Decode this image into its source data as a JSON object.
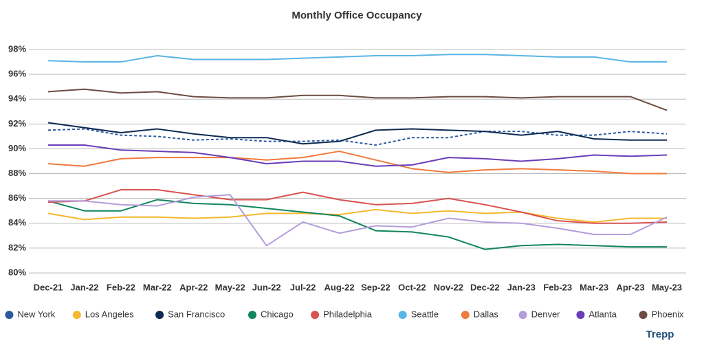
{
  "chart_data": {
    "type": "line",
    "title": "Monthly Office Occupancy",
    "brand": "Trepp",
    "categories": [
      "Dec-21",
      "Jan-22",
      "Feb-22",
      "Mar-22",
      "Apr-22",
      "May-22",
      "Jun-22",
      "Jul-22",
      "Aug-22",
      "Sep-22",
      "Oct-22",
      "Nov-22",
      "Dec-22",
      "Jan-23",
      "Feb-23",
      "Mar-23",
      "Apr-23",
      "May-23"
    ],
    "ylim": [
      80,
      98
    ],
    "yticks": [
      {
        "value": 80,
        "label": "80%"
      },
      {
        "value": 82,
        "label": "82%"
      },
      {
        "value": 84,
        "label": "84%"
      },
      {
        "value": 86,
        "label": "86%"
      },
      {
        "value": 88,
        "label": "88%"
      },
      {
        "value": 90,
        "label": "90%"
      },
      {
        "value": 92,
        "label": "92%"
      },
      {
        "value": 94,
        "label": "94%"
      },
      {
        "value": 96,
        "label": "96%"
      },
      {
        "value": 98,
        "label": "98%"
      }
    ],
    "grid": true,
    "legend": "bottom",
    "series": [
      {
        "name": "New York",
        "color": "#2a5aa0",
        "dash": "dashed",
        "values": [
          91.5,
          91.6,
          91.1,
          91.0,
          90.7,
          90.8,
          90.6,
          90.6,
          90.7,
          90.3,
          90.9,
          90.9,
          91.4,
          91.4,
          91.1,
          91.1,
          91.4,
          91.2
        ]
      },
      {
        "name": "Los Angeles",
        "color": "#f5b82e",
        "values": [
          84.8,
          84.3,
          84.5,
          84.5,
          84.4,
          84.5,
          84.8,
          84.8,
          84.7,
          85.1,
          84.8,
          85.0,
          84.8,
          84.9,
          84.4,
          84.1,
          84.4,
          84.4
        ]
      },
      {
        "name": "San Francisco",
        "color": "#0d2b52",
        "values": [
          92.1,
          91.7,
          91.3,
          91.6,
          91.2,
          90.9,
          90.9,
          90.4,
          90.6,
          91.5,
          91.6,
          91.5,
          91.4,
          91.1,
          91.4,
          90.8,
          90.7,
          90.7
        ]
      },
      {
        "name": "Chicago",
        "color": "#11855f",
        "values": [
          85.8,
          85.0,
          85.0,
          85.9,
          85.6,
          85.5,
          85.2,
          84.9,
          84.6,
          83.4,
          83.3,
          82.9,
          81.9,
          82.2,
          82.3,
          82.2,
          82.1,
          82.1
        ]
      },
      {
        "name": "Philadelphia",
        "color": "#d9534f",
        "values": [
          85.7,
          85.8,
          86.7,
          86.7,
          86.3,
          85.9,
          85.9,
          86.5,
          85.9,
          85.5,
          85.6,
          86.0,
          85.5,
          84.9,
          84.2,
          84.0,
          84.0,
          84.1
        ]
      },
      {
        "name": "Seattle",
        "color": "#5ab4e5",
        "values": [
          97.1,
          97.0,
          97.0,
          97.5,
          97.2,
          97.2,
          97.2,
          97.3,
          97.4,
          97.5,
          97.5,
          97.6,
          97.6,
          97.5,
          97.4,
          97.4,
          97.0,
          97.0
        ]
      },
      {
        "name": "Dallas",
        "color": "#f07a3b",
        "values": [
          88.8,
          88.6,
          89.2,
          89.3,
          89.3,
          89.3,
          89.1,
          89.3,
          89.8,
          89.1,
          88.4,
          88.1,
          88.3,
          88.4,
          88.3,
          88.2,
          88.0,
          88.0
        ]
      },
      {
        "name": "Denver",
        "color": "#b39ddb",
        "values": [
          85.8,
          85.8,
          85.5,
          85.4,
          86.1,
          86.3,
          82.2,
          84.1,
          83.2,
          83.8,
          83.7,
          84.4,
          84.1,
          84.0,
          83.6,
          83.1,
          83.1,
          84.5
        ]
      },
      {
        "name": "Atlanta",
        "color": "#6a3db8",
        "values": [
          90.3,
          90.3,
          89.9,
          89.8,
          89.7,
          89.3,
          88.8,
          89.0,
          89.0,
          88.6,
          88.7,
          89.3,
          89.2,
          89.0,
          89.2,
          89.5,
          89.4,
          89.5
        ]
      },
      {
        "name": "Phoenix",
        "color": "#6d4c41",
        "values": [
          94.6,
          94.8,
          94.5,
          94.6,
          94.2,
          94.1,
          94.1,
          94.3,
          94.3,
          94.1,
          94.1,
          94.2,
          94.2,
          94.1,
          94.2,
          94.2,
          94.2,
          93.1
        ]
      }
    ]
  }
}
